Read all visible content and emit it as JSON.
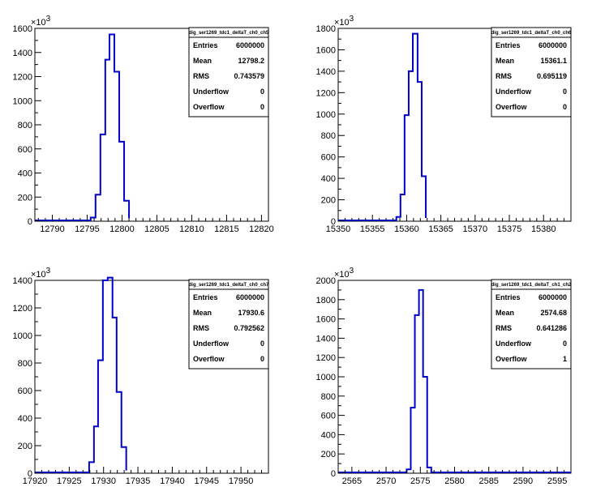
{
  "chart_data": [
    {
      "type": "histogram",
      "stats_title": "dig_ser1269_tdc1_deltaT_ch0_ch5",
      "y_exponent": "3",
      "xlim": [
        12787.5,
        12821
      ],
      "ylim": [
        0,
        1600
      ],
      "x_ticks": [
        12790,
        12795,
        12800,
        12805,
        12810,
        12815,
        12820
      ],
      "y_ticks": [
        0,
        200,
        400,
        600,
        800,
        1000,
        1200,
        1400,
        1600
      ],
      "bin_edges": [
        12795.5,
        12796.2,
        12796.9,
        12797.6,
        12798.2,
        12798.9,
        12799.6,
        12800.3,
        12801.0
      ],
      "counts": [
        30,
        220,
        720,
        1340,
        1550,
        1240,
        660,
        170,
        25
      ],
      "stats": [
        {
          "label": "Entries",
          "value": "6000000"
        },
        {
          "label": "Mean",
          "value": "12798.2"
        },
        {
          "label": "RMS",
          "value": "0.743579"
        },
        {
          "label": "Underflow",
          "value": "0"
        },
        {
          "label": "Overflow",
          "value": "0"
        }
      ]
    },
    {
      "type": "histogram",
      "stats_title": "dig_ser1269_tdc1_deltaT_ch0_ch6",
      "y_exponent": "3",
      "xlim": [
        15350,
        15384
      ],
      "ylim": [
        0,
        1800
      ],
      "x_ticks": [
        15350,
        15355,
        15360,
        15365,
        15370,
        15375,
        15380
      ],
      "y_ticks": [
        0,
        200,
        400,
        600,
        800,
        1000,
        1200,
        1400,
        1600,
        1800
      ],
      "bin_edges": [
        15358.5,
        15359.1,
        15359.7,
        15360.3,
        15360.9,
        15361.6,
        15362.2,
        15362.8
      ],
      "counts": [
        40,
        250,
        990,
        1400,
        1750,
        1300,
        420,
        30
      ],
      "stats": [
        {
          "label": "Entries",
          "value": "6000000"
        },
        {
          "label": "Mean",
          "value": "15361.1"
        },
        {
          "label": "RMS",
          "value": "0.695119"
        },
        {
          "label": "Underflow",
          "value": "0"
        },
        {
          "label": "Overflow",
          "value": "0"
        }
      ]
    },
    {
      "type": "histogram",
      "stats_title": "dig_ser1269_tdc1_deltaT_ch0_ch7",
      "y_exponent": "3",
      "xlim": [
        17920,
        17954
      ],
      "ylim": [
        0,
        1400
      ],
      "x_ticks": [
        17920,
        17925,
        17930,
        17935,
        17940,
        17945,
        17950
      ],
      "y_ticks": [
        0,
        200,
        400,
        600,
        800,
        1000,
        1200,
        1400
      ],
      "bin_edges": [
        17927.9,
        17928.6,
        17929.2,
        17929.9,
        17930.6,
        17931.3,
        17931.9,
        17932.6,
        17933.3
      ],
      "counts": [
        80,
        340,
        820,
        1400,
        1420,
        1130,
        590,
        190,
        20
      ],
      "stats": [
        {
          "label": "Entries",
          "value": "6000000"
        },
        {
          "label": "Mean",
          "value": "17930.6"
        },
        {
          "label": "RMS",
          "value": "0.792562"
        },
        {
          "label": "Underflow",
          "value": "0"
        },
        {
          "label": "Overflow",
          "value": "0"
        }
      ]
    },
    {
      "type": "histogram",
      "stats_title": "dig_ser1269_tdc1_deltaT_ch1_ch2",
      "y_exponent": "3",
      "xlim": [
        2563,
        2597
      ],
      "ylim": [
        0,
        2000
      ],
      "x_ticks": [
        2565,
        2570,
        2575,
        2580,
        2585,
        2590,
        2595
      ],
      "y_ticks": [
        0,
        200,
        400,
        600,
        800,
        1000,
        1200,
        1400,
        1600,
        1800,
        2000
      ],
      "bin_edges": [
        2573.0,
        2573.6,
        2574.2,
        2574.8,
        2575.4,
        2576.0,
        2576.6
      ],
      "counts": [
        40,
        680,
        1640,
        1900,
        1000,
        60
      ],
      "stats": [
        {
          "label": "Entries",
          "value": "6000000"
        },
        {
          "label": "Mean",
          "value": "2574.68"
        },
        {
          "label": "RMS",
          "value": "0.641286"
        },
        {
          "label": "Underflow",
          "value": "0"
        },
        {
          "label": "Overflow",
          "value": "1"
        }
      ]
    }
  ]
}
